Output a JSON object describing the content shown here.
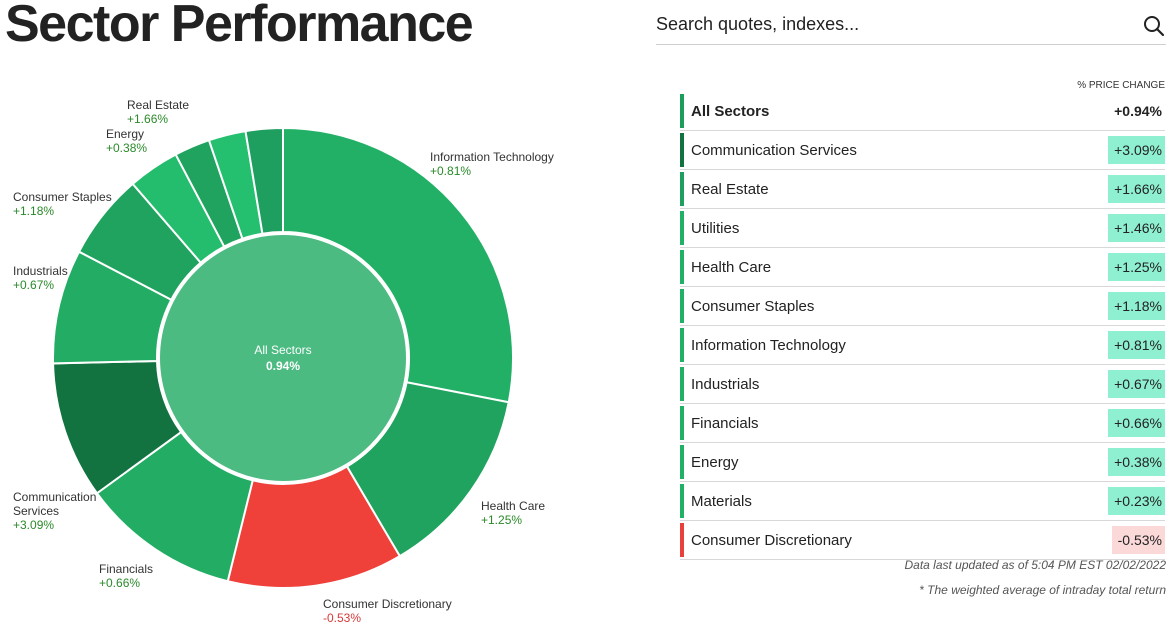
{
  "page": {
    "title": "Sector Performance",
    "search_placeholder": "Search quotes, indexes...",
    "updated_note": "Data last updated as of 5:04 PM EST 02/02/2022",
    "weighted_note": "* The weighted average of intraday total return"
  },
  "table": {
    "column_header": "% PRICE CHANGE",
    "rows": [
      {
        "name": "All Sectors",
        "change": "+0.94%",
        "bar_color": "#1b9e5a",
        "cell_color": "#ffffff"
      },
      {
        "name": "Communication Services",
        "change": "+3.09%",
        "bar_color": "#137340",
        "cell_color": "#8ff0d1"
      },
      {
        "name": "Real Estate",
        "change": "+1.66%",
        "bar_color": "#1f9f5f",
        "cell_color": "#8ff0d1"
      },
      {
        "name": "Utilities",
        "change": "+1.46%",
        "bar_color": "#22b066",
        "cell_color": "#8ff0d1"
      },
      {
        "name": "Health Care",
        "change": "+1.25%",
        "bar_color": "#22b066",
        "cell_color": "#8ff0d1"
      },
      {
        "name": "Consumer Staples",
        "change": "+1.18%",
        "bar_color": "#22b066",
        "cell_color": "#8ff0d1"
      },
      {
        "name": "Information Technology",
        "change": "+0.81%",
        "bar_color": "#22b066",
        "cell_color": "#8ff0d1"
      },
      {
        "name": "Industrials",
        "change": "+0.67%",
        "bar_color": "#22b066",
        "cell_color": "#8ff0d1"
      },
      {
        "name": "Financials",
        "change": "+0.66%",
        "bar_color": "#22b066",
        "cell_color": "#8ff0d1"
      },
      {
        "name": "Energy",
        "change": "+0.38%",
        "bar_color": "#22b066",
        "cell_color": "#8ff0d1"
      },
      {
        "name": "Materials",
        "change": "+0.23%",
        "bar_color": "#22b066",
        "cell_color": "#8ff0d1"
      },
      {
        "name": "Consumer Discretionary",
        "change": "-0.53%",
        "bar_color": "#e8403a",
        "cell_color": "#fcd9d9"
      }
    ]
  },
  "chart_data": {
    "type": "pie",
    "center_label": "All Sectors",
    "center_value": "0.94%",
    "center_color": "#4cbb82",
    "slices": [
      {
        "name": "Information Technology",
        "change": "+0.81%",
        "weight": 28.0,
        "color": "#22b066",
        "label_lines": [
          "Information Technology"
        ],
        "label_color": "#2a8a2a"
      },
      {
        "name": "Health Care",
        "change": "+1.25%",
        "weight": 13.4,
        "color": "#1fa35e",
        "label_lines": [
          "Health Care"
        ],
        "label_color": "#2a8a2a"
      },
      {
        "name": "Consumer Discretionary",
        "change": "-0.53%",
        "weight": 12.3,
        "color": "#ef403a",
        "label_lines": [
          "Consumer Discretionary"
        ],
        "label_color": "#d63a3a"
      },
      {
        "name": "Financials",
        "change": "+0.66%",
        "weight": 11.1,
        "color": "#22ac64",
        "label_lines": [
          "Financials"
        ],
        "label_color": "#2a8a2a"
      },
      {
        "name": "Communication Services",
        "change": "+3.09%",
        "weight": 9.6,
        "color": "#137340",
        "label_lines": [
          "Communication",
          "Services"
        ],
        "label_color": "#2a8a2a"
      },
      {
        "name": "Industrials",
        "change": "+0.67%",
        "weight": 8.0,
        "color": "#22ac64",
        "label_lines": [
          "Industrials"
        ],
        "label_color": "#2a8a2a"
      },
      {
        "name": "Consumer Staples",
        "change": "+1.18%",
        "weight": 6.0,
        "color": "#1fa35e",
        "label_lines": [
          "Consumer Staples"
        ],
        "label_color": "#2a8a2a"
      },
      {
        "name": "Energy",
        "change": "+0.38%",
        "weight": 3.6,
        "color": "#24bd6e",
        "label_lines": [
          "Energy"
        ],
        "label_color": "#2a8a2a"
      },
      {
        "name": "Utilities",
        "change": "+1.46%",
        "weight": 2.5,
        "color": "#1fa35e",
        "label_lines": [],
        "label_color": "#2a8a2a"
      },
      {
        "name": "Materials",
        "change": "+0.23%",
        "weight": 2.6,
        "color": "#24c070",
        "label_lines": [],
        "label_color": "#2a8a2a"
      },
      {
        "name": "Real Estate",
        "change": "+1.66%",
        "weight": 2.6,
        "color": "#1f9f5f",
        "label_lines": [
          "Real Estate"
        ],
        "label_color": "#2a8a2a"
      }
    ]
  }
}
